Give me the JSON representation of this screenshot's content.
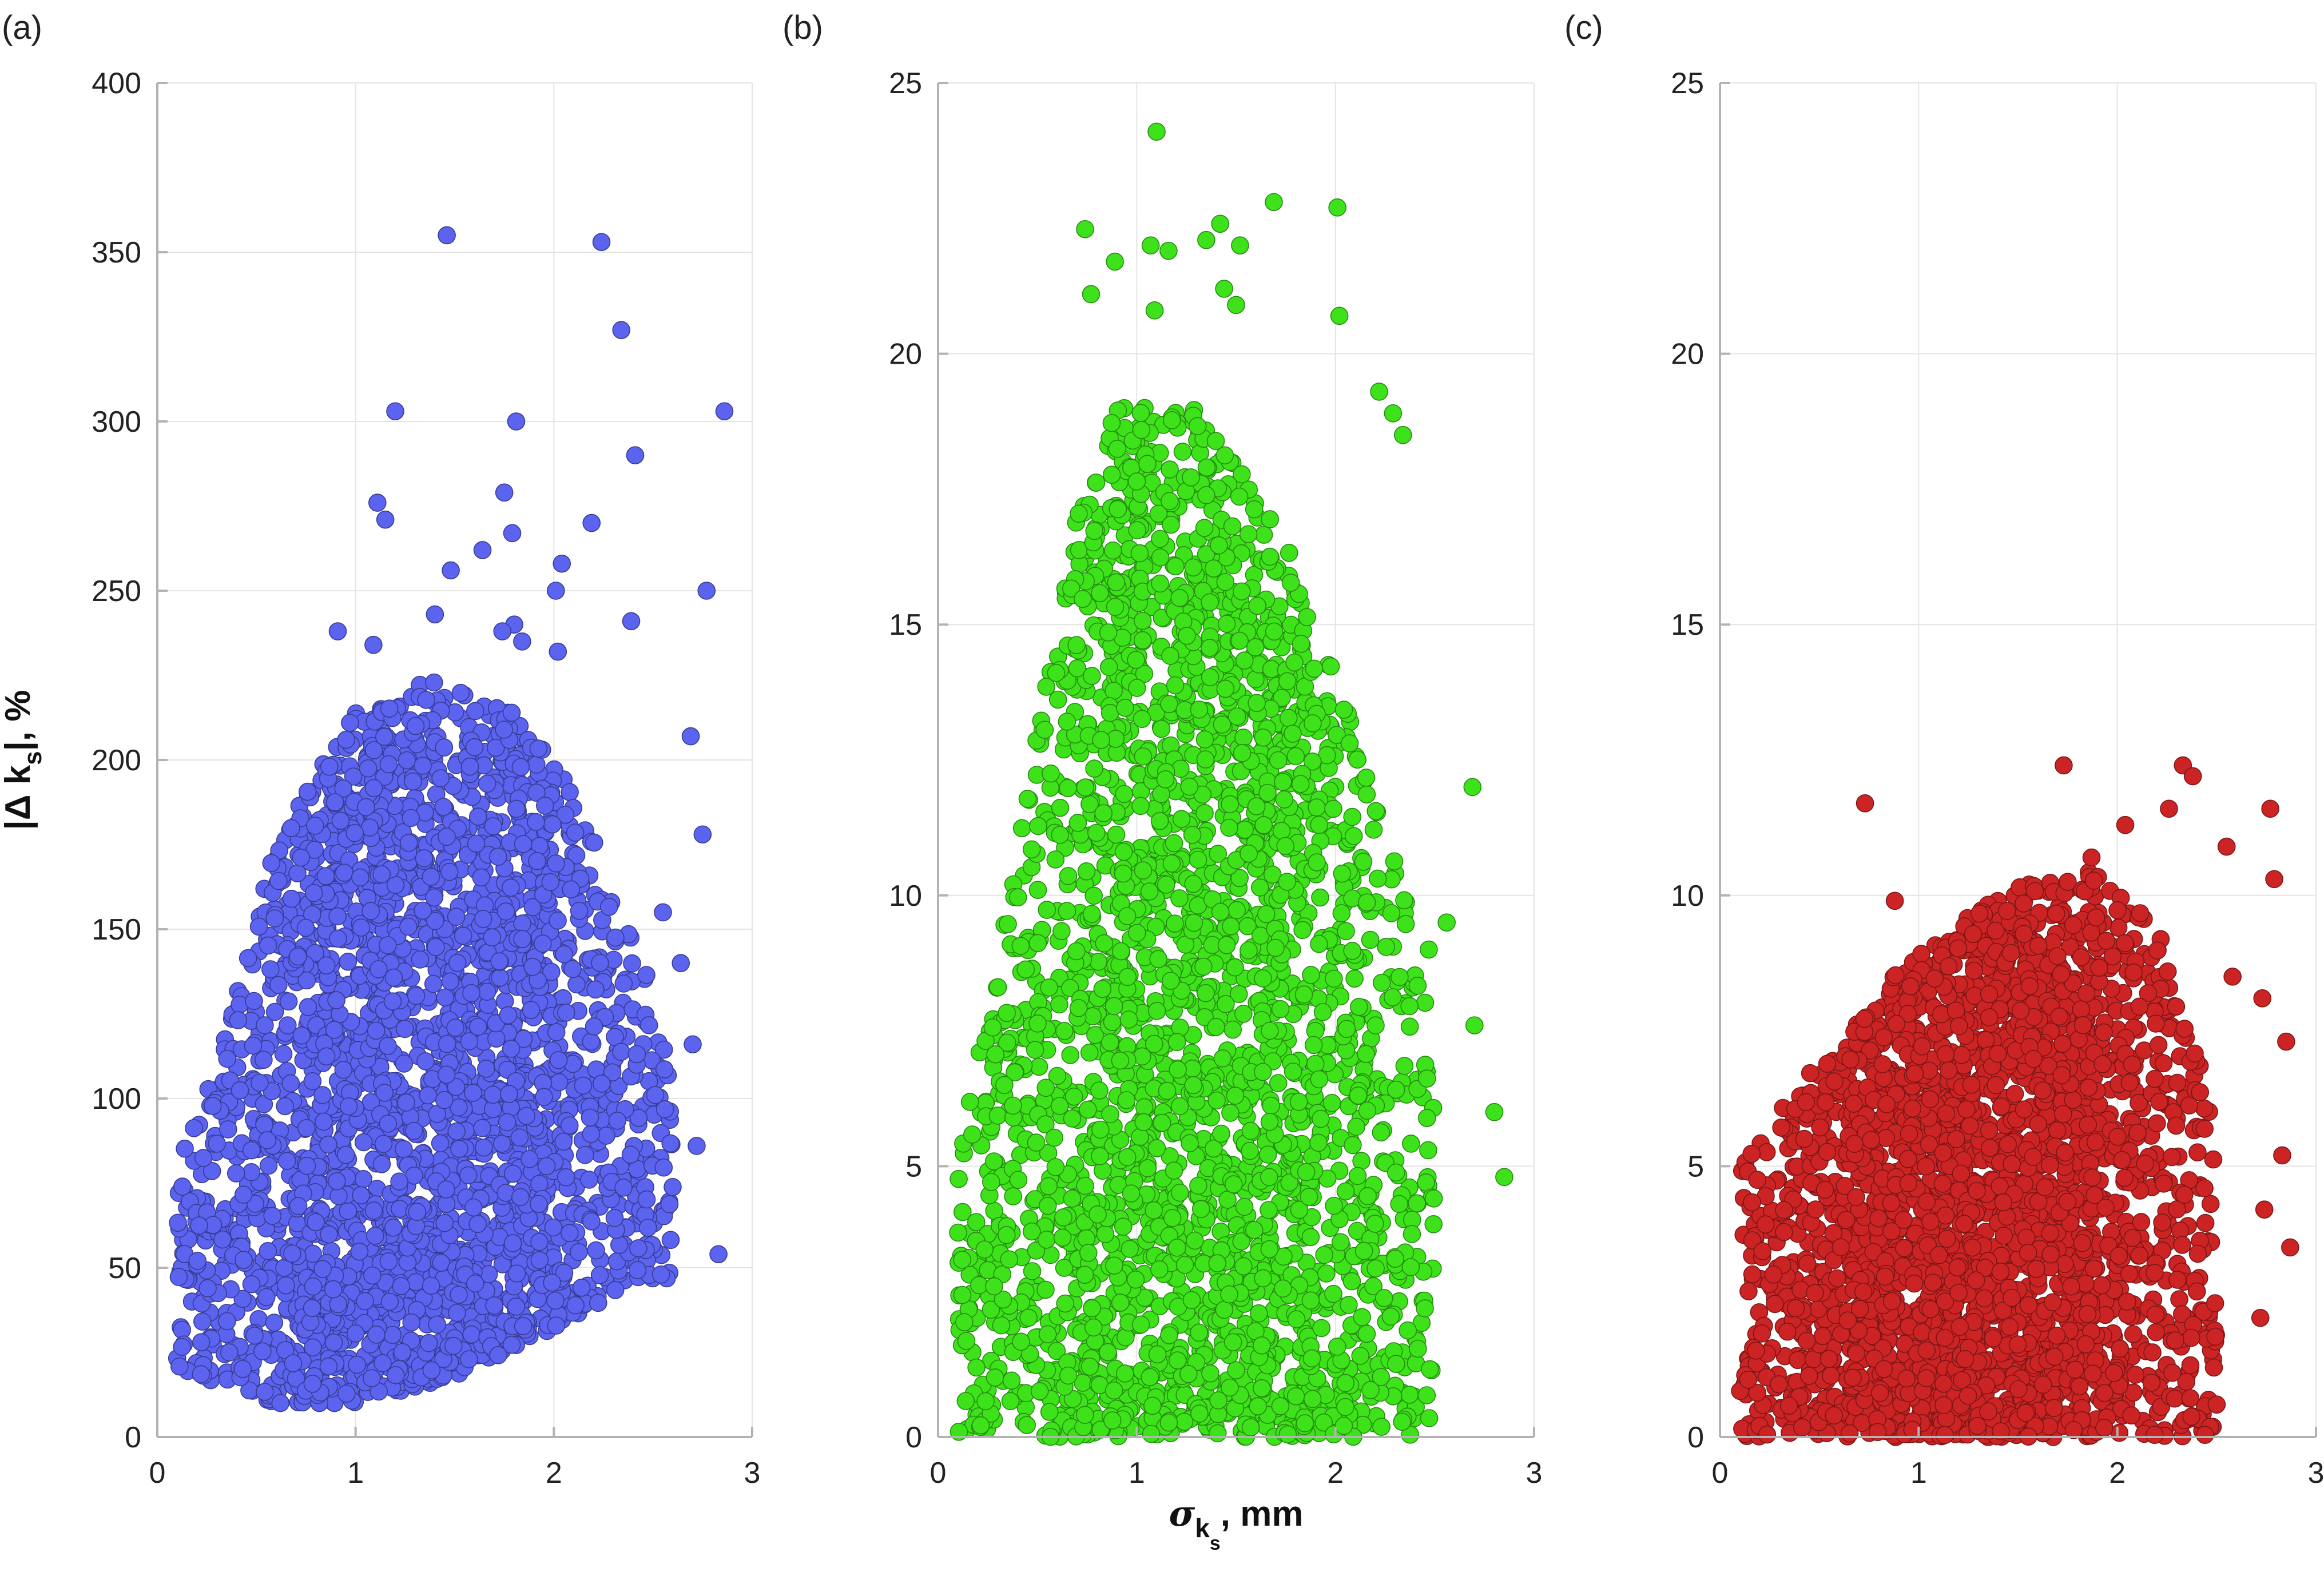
{
  "chart_data": [
    {
      "type": "scatter",
      "panel_label": "(a)",
      "xlabel": "",
      "ylabel": "|Δ k_s|, %",
      "xlim": [
        0,
        3
      ],
      "ylim": [
        0,
        400
      ],
      "xticks": [
        0,
        1,
        2,
        3
      ],
      "yticks": [
        0,
        50,
        100,
        150,
        200,
        250,
        300,
        350,
        400
      ],
      "xtick_labels": [
        "0",
        "1",
        "2",
        "3"
      ],
      "ytick_labels": [
        "0",
        "50",
        "100",
        "150",
        "200",
        "250",
        "300",
        "350",
        "400"
      ],
      "grid": true,
      "marker_color": "#5b63ef",
      "outliers": [
        [
          1.46,
          355
        ],
        [
          2.24,
          353
        ],
        [
          2.34,
          327
        ],
        [
          1.2,
          303
        ],
        [
          1.81,
          300
        ],
        [
          2.86,
          303
        ],
        [
          2.41,
          290
        ],
        [
          1.75,
          279
        ],
        [
          1.11,
          276
        ],
        [
          1.15,
          271
        ],
        [
          1.79,
          267
        ],
        [
          2.19,
          270
        ],
        [
          1.64,
          262
        ],
        [
          2.77,
          250
        ],
        [
          1.48,
          256
        ],
        [
          2.04,
          258
        ],
        [
          2.01,
          250
        ],
        [
          2.39,
          241
        ],
        [
          1.8,
          240
        ],
        [
          1.74,
          238
        ],
        [
          0.91,
          238
        ],
        [
          1.4,
          243
        ],
        [
          1.84,
          235
        ],
        [
          2.02,
          232
        ],
        [
          1.09,
          234
        ],
        [
          2.69,
          207
        ],
        [
          2.75,
          178
        ],
        [
          2.55,
          155
        ],
        [
          2.64,
          140
        ],
        [
          2.83,
          54
        ],
        [
          2.54,
          48
        ],
        [
          2.7,
          116
        ],
        [
          2.72,
          86
        ]
      ],
      "cloud": {
        "x_range": [
          0.1,
          2.6
        ],
        "y_min_at_x": [
          [
            0.1,
            20
          ],
          [
            0.6,
            10
          ],
          [
            1.0,
            10
          ],
          [
            1.5,
            18
          ],
          [
            2.0,
            32
          ],
          [
            2.4,
            45
          ]
        ],
        "y_max_at_x": [
          [
            0.1,
            80
          ],
          [
            0.3,
            110
          ],
          [
            0.6,
            175
          ],
          [
            1.0,
            215
          ],
          [
            1.4,
            225
          ],
          [
            1.8,
            215
          ],
          [
            2.1,
            190
          ],
          [
            2.4,
            150
          ],
          [
            2.6,
            110
          ]
        ],
        "point_count": 3000
      }
    },
    {
      "type": "scatter",
      "panel_label": "(b)",
      "xlabel": "σ_{k_s}, mm",
      "ylabel": "",
      "xlim": [
        0,
        3
      ],
      "ylim": [
        0,
        25
      ],
      "xticks": [
        0,
        1,
        2,
        3
      ],
      "yticks": [
        0,
        5,
        10,
        15,
        20,
        25
      ],
      "xtick_labels": [
        "0",
        "1",
        "2",
        "3"
      ],
      "ytick_labels": [
        "0",
        "5",
        "10",
        "15",
        "20",
        "25"
      ],
      "grid": true,
      "marker_color": "#3ee21a",
      "outliers": [
        [
          1.1,
          24.1
        ],
        [
          1.69,
          22.8
        ],
        [
          2.01,
          22.7
        ],
        [
          0.74,
          22.3
        ],
        [
          1.42,
          22.4
        ],
        [
          1.07,
          22.0
        ],
        [
          1.16,
          21.9
        ],
        [
          1.35,
          22.1
        ],
        [
          1.52,
          22.0
        ],
        [
          0.89,
          21.7
        ],
        [
          1.44,
          21.2
        ],
        [
          2.02,
          20.7
        ],
        [
          1.5,
          20.9
        ],
        [
          1.09,
          20.8
        ],
        [
          0.77,
          21.1
        ],
        [
          2.22,
          19.3
        ],
        [
          2.29,
          18.9
        ],
        [
          2.34,
          18.5
        ],
        [
          2.85,
          4.8
        ],
        [
          2.8,
          6.0
        ],
        [
          2.7,
          7.6
        ],
        [
          2.69,
          12.0
        ],
        [
          2.56,
          9.5
        ],
        [
          2.47,
          9.0
        ]
      ],
      "cloud": {
        "x_range": [
          0.1,
          2.5
        ],
        "y_min_at_x": [
          [
            0.1,
            0
          ],
          [
            2.5,
            0
          ]
        ],
        "y_max_at_x": [
          [
            0.1,
            5
          ],
          [
            0.3,
            9
          ],
          [
            0.5,
            13
          ],
          [
            0.7,
            17
          ],
          [
            0.9,
            19
          ],
          [
            1.3,
            19
          ],
          [
            1.7,
            17
          ],
          [
            2.0,
            14
          ],
          [
            2.2,
            12
          ],
          [
            2.5,
            8
          ]
        ],
        "point_count": 3000
      }
    },
    {
      "type": "scatter",
      "panel_label": "(c)",
      "xlabel": "",
      "ylabel": "",
      "xlim": [
        0,
        3
      ],
      "ylim": [
        0,
        25
      ],
      "xticks": [
        0,
        1,
        2,
        3
      ],
      "yticks": [
        0,
        5,
        10,
        15,
        20,
        25
      ],
      "xtick_labels": [
        "0",
        "1",
        "2",
        "3"
      ],
      "ytick_labels": [
        "0",
        "5",
        "10",
        "15",
        "20",
        "25"
      ],
      "grid": true,
      "marker_color": "#cc2424",
      "outliers": [
        [
          1.73,
          12.4
        ],
        [
          2.33,
          12.4
        ],
        [
          2.38,
          12.2
        ],
        [
          0.73,
          11.7
        ],
        [
          2.77,
          11.6
        ],
        [
          2.26,
          11.6
        ],
        [
          2.04,
          11.3
        ],
        [
          2.55,
          10.9
        ],
        [
          2.79,
          10.3
        ],
        [
          2.85,
          7.3
        ],
        [
          2.83,
          5.2
        ],
        [
          2.74,
          4.2
        ],
        [
          2.72,
          2.2
        ],
        [
          2.87,
          3.5
        ],
        [
          2.5,
          0.6
        ],
        [
          2.58,
          8.5
        ],
        [
          2.73,
          8.1
        ],
        [
          1.87,
          10.7
        ],
        [
          0.88,
          9.9
        ]
      ],
      "cloud": {
        "x_range": [
          0.1,
          2.5
        ],
        "y_min_at_x": [
          [
            0.1,
            0
          ],
          [
            2.5,
            0
          ]
        ],
        "y_max_at_x": [
          [
            0.1,
            5
          ],
          [
            0.5,
            7
          ],
          [
            1.0,
            9
          ],
          [
            1.5,
            10.2
          ],
          [
            1.9,
            10.5
          ],
          [
            2.2,
            9.5
          ],
          [
            2.5,
            6
          ]
        ],
        "point_count": 3000
      }
    }
  ]
}
